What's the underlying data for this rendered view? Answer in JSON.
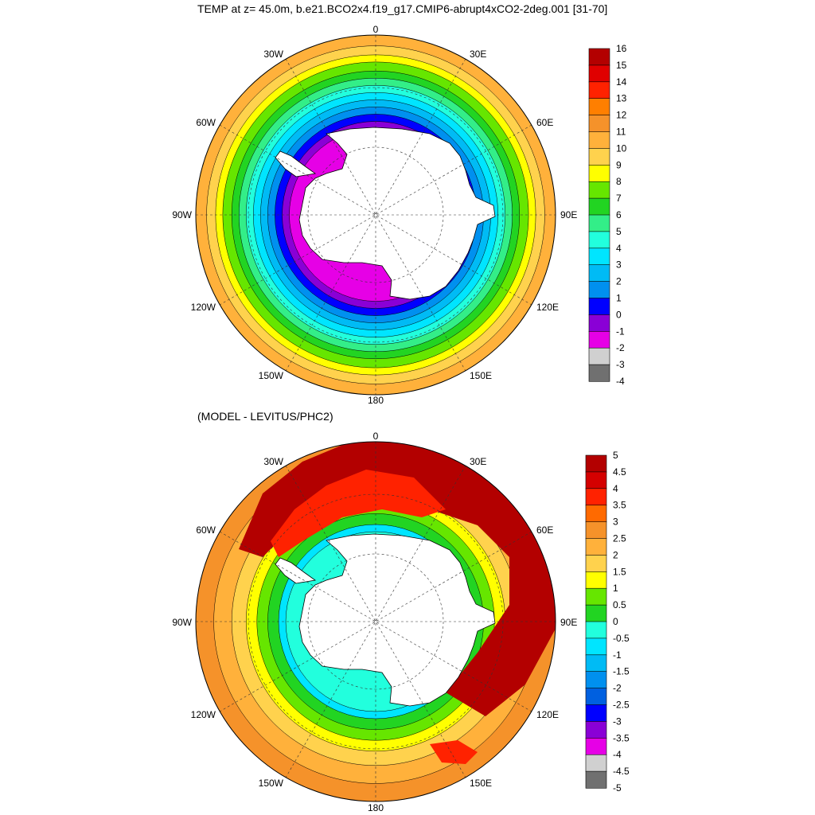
{
  "main_title": "TEMP at z=  45.0m, b.e21.BCO2x4.f19_g17.CMIP6-abrupt4xCO2-2deg.001 [31-70]",
  "sub_title": "(MODEL - LEVITUS/PHC2)",
  "longitude_labels": {
    "top": "0",
    "upper_left": "30W",
    "upper_right": "30E",
    "left_upper": "60W",
    "right_upper": "60E",
    "left": "90W",
    "right": "90E",
    "left_lower": "120W",
    "right_lower": "120E",
    "lower_left": "150W",
    "lower_right": "150E",
    "bottom": "180"
  },
  "colors": {
    "land": "#ffffff",
    "outline": "#000000"
  },
  "panels": [
    {
      "name": "model-temperature",
      "colorbar_labels": [
        "16",
        "15",
        "14",
        "13",
        "12",
        "11",
        "10",
        "9",
        "8",
        "7",
        "6",
        "5",
        "4",
        "3",
        "2",
        "1",
        "0",
        "-1",
        "-2",
        "-3",
        "-4"
      ],
      "colorbar_colors": [
        "#b30000",
        "#e00000",
        "#ff2200",
        "#ff7f00",
        "#f5922a",
        "#ffb13b",
        "#ffd24d",
        "#ffff00",
        "#66e600",
        "#22d422",
        "#33ee88",
        "#22ffdd",
        "#00e5ff",
        "#00bbf5",
        "#0090ef",
        "#0000ff",
        "#8a00d6",
        "#e600e6",
        "#d0d0d0",
        "#707070"
      ],
      "ring_bands": [
        {
          "r": 1.0,
          "c": "#ffb13b"
        },
        {
          "r": 0.94,
          "c": "#ffd24d"
        },
        {
          "r": 0.89,
          "c": "#ffff00"
        },
        {
          "r": 0.85,
          "c": "#66e600"
        },
        {
          "r": 0.8,
          "c": "#22d422"
        },
        {
          "r": 0.76,
          "c": "#33ee88"
        },
        {
          "r": 0.72,
          "c": "#22ffdd"
        },
        {
          "r": 0.68,
          "c": "#00e5ff"
        },
        {
          "r": 0.64,
          "c": "#00bbf5"
        },
        {
          "r": 0.6,
          "c": "#0090ef"
        },
        {
          "r": 0.56,
          "c": "#0000ff"
        },
        {
          "r": 0.52,
          "c": "#8a00d6"
        },
        {
          "r": 0.48,
          "c": "#e600e6"
        }
      ]
    },
    {
      "name": "model-minus-levitus",
      "colorbar_labels": [
        "5",
        "4.5",
        "4",
        "3.5",
        "3",
        "2.5",
        "2",
        "1.5",
        "1",
        "0.5",
        "0",
        "-0.5",
        "-1",
        "-1.5",
        "-2",
        "-2.5",
        "-3",
        "-3.5",
        "-4",
        "-4.5",
        "-5"
      ],
      "colorbar_colors": [
        "#b30000",
        "#d40000",
        "#ff2200",
        "#ff6a00",
        "#f5922a",
        "#ffb13b",
        "#ffd24d",
        "#ffff00",
        "#66e600",
        "#22d422",
        "#22ffdd",
        "#00e5ff",
        "#00bbf5",
        "#0090ef",
        "#0060e0",
        "#0000ff",
        "#8a00d6",
        "#e600e6",
        "#d0d0d0",
        "#707070"
      ],
      "ring_bands": [
        {
          "r": 1.0,
          "c": "#f5922a"
        },
        {
          "r": 0.9,
          "c": "#ffb13b"
        },
        {
          "r": 0.8,
          "c": "#ffd24d"
        },
        {
          "r": 0.72,
          "c": "#ffff00"
        },
        {
          "r": 0.66,
          "c": "#66e600"
        },
        {
          "r": 0.6,
          "c": "#22d422"
        },
        {
          "r": 0.54,
          "c": "#00e5ff"
        },
        {
          "r": 0.5,
          "c": "#22ffdd"
        }
      ]
    }
  ]
}
